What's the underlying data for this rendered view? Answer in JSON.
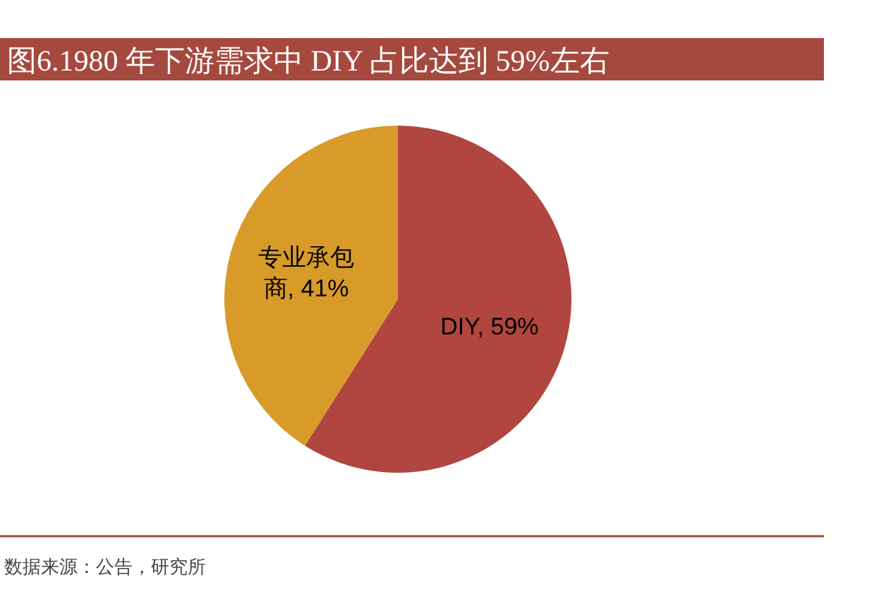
{
  "chart_data": {
    "type": "pie",
    "title": "图6.1980 年下游需求中 DIY 占比达到 59%左右",
    "categories": [
      "DIY",
      "专业承包商"
    ],
    "values": [
      59,
      41
    ],
    "colors": [
      "#b0463f",
      "#d89b2a"
    ],
    "value_labels": [
      "59%",
      "41%"
    ],
    "annotations": [
      "数据来源：公告，研究所"
    ],
    "legend": false
  }
}
